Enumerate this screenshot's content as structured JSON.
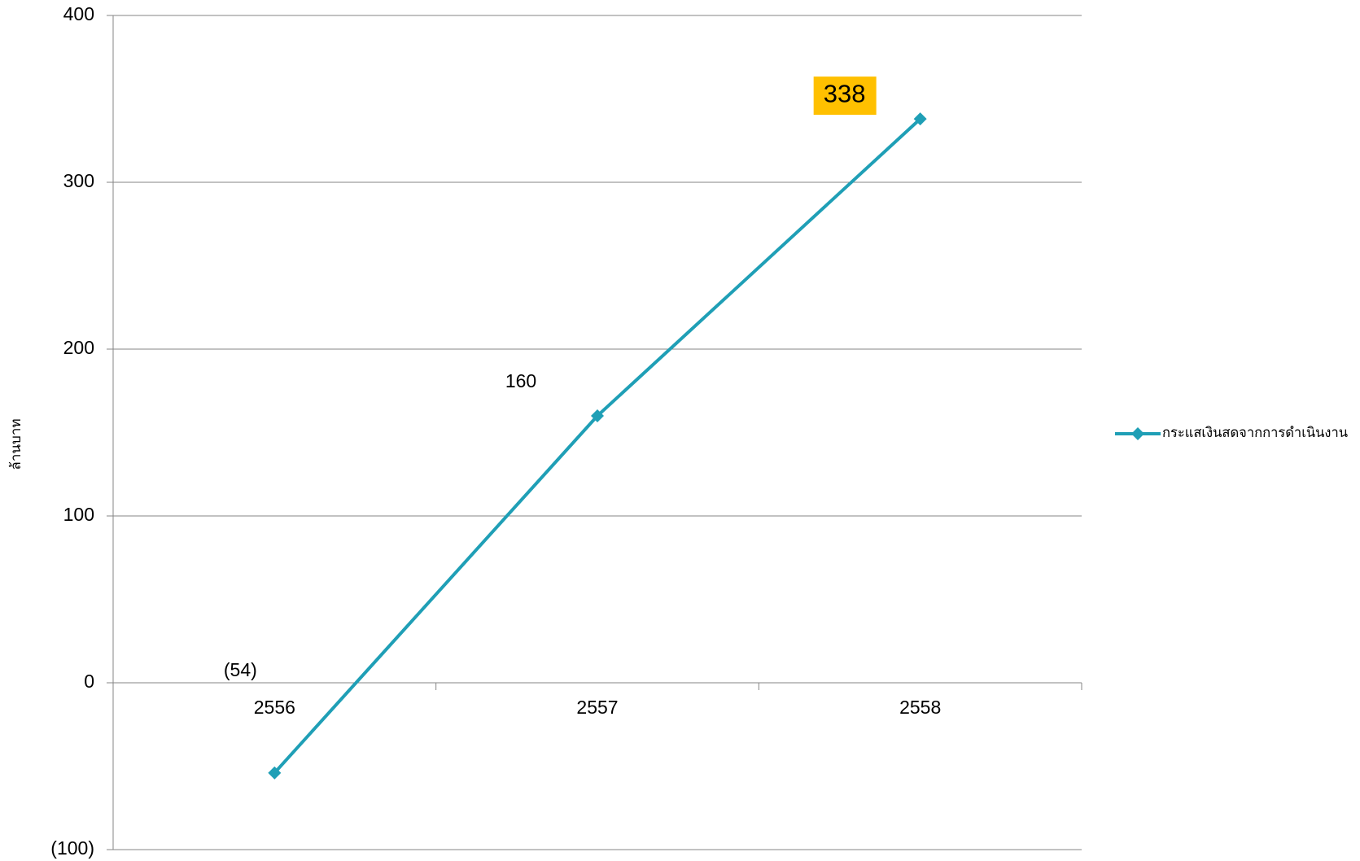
{
  "colors": {
    "series": "#1f9fb6",
    "negative": "#ff0000",
    "highlight": "#ffc000",
    "grid": "#868686",
    "text": "#000000"
  },
  "chart_data": {
    "type": "line",
    "title": "",
    "xlabel": "",
    "ylabel": "ล้านบาท",
    "categories": [
      "2556",
      "2557",
      "2558"
    ],
    "series": [
      {
        "name": "กระแสเงินสดจากการดำเนินงาน",
        "values": [
          -54,
          160,
          338
        ]
      }
    ],
    "data_labels": [
      {
        "text": "(54)",
        "negative": true,
        "highlighted": false
      },
      {
        "text": "160",
        "negative": false,
        "highlighted": false
      },
      {
        "text": "338",
        "negative": false,
        "highlighted": true
      }
    ],
    "ylim": [
      -100,
      400
    ],
    "y_ticks": [
      {
        "value": -100,
        "label": "(100)",
        "negative": true
      },
      {
        "value": 0,
        "label": "0",
        "negative": false
      },
      {
        "value": 100,
        "label": "100",
        "negative": false
      },
      {
        "value": 200,
        "label": "200",
        "negative": false
      },
      {
        "value": 300,
        "label": "300",
        "negative": false
      },
      {
        "value": 400,
        "label": "400",
        "negative": false
      }
    ],
    "grid": true,
    "legend": {
      "position": "right"
    }
  }
}
